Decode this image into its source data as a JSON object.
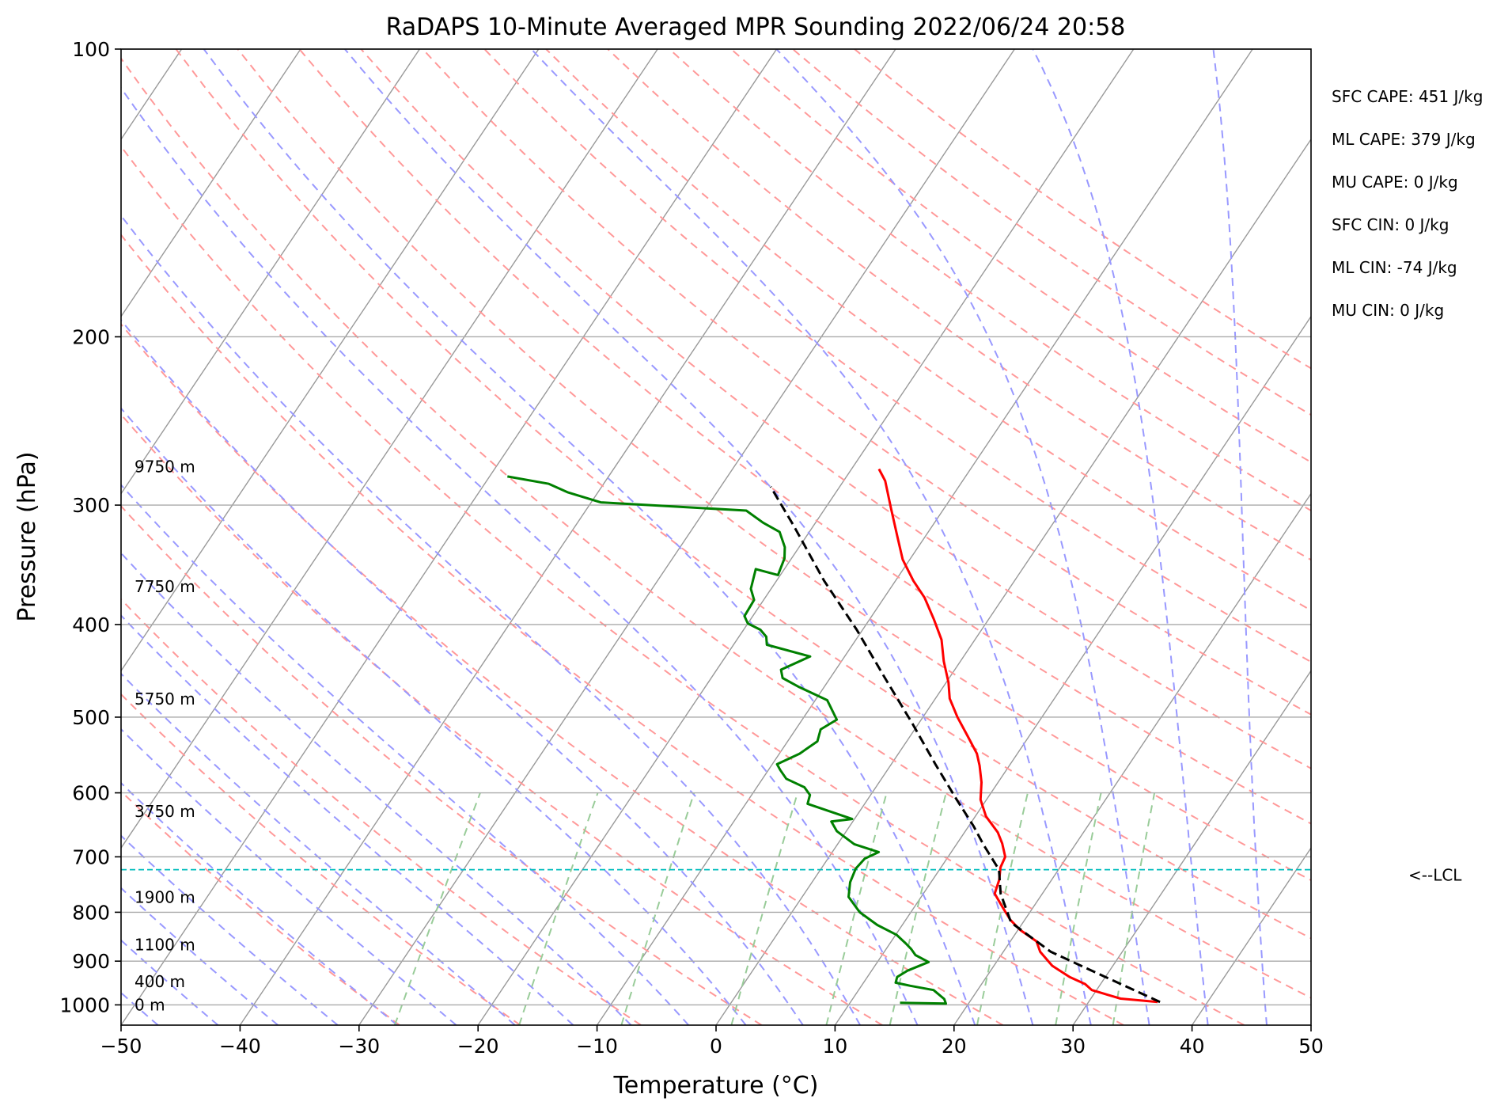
{
  "chart_data": {
    "type": "skew-t",
    "title": "RaDAPS 10-Minute Averaged MPR Sounding 2022/06/24 20:58",
    "xlabel": "Temperature (°C)",
    "ylabel": "Pressure (hPa)",
    "xlim": [
      -50,
      50
    ],
    "ylim": [
      1050,
      100
    ],
    "y_scale": "log",
    "x_ticks": [
      "−50",
      "−40",
      "−30",
      "−20",
      "−10",
      "0",
      "10",
      "20",
      "30",
      "40",
      "50"
    ],
    "y_ticks": [
      "100",
      "200",
      "300",
      "400",
      "500",
      "600",
      "700",
      "800",
      "900",
      "1000"
    ],
    "grid": true,
    "height_labels": [
      "9750 m",
      "7750 m",
      "5750 m",
      "3750 m",
      "1900 m",
      "1100 m",
      "400 m",
      "0 m"
    ],
    "stats": [
      "SFC CAPE: 451 J/kg",
      "ML CAPE: 379 J/kg",
      "MU CAPE: 0 J/kg",
      "SFC CIN: 0 J/kg",
      "ML CIN: -74 J/kg",
      "MU CIN: 0 J/kg"
    ],
    "lcl": {
      "label": "<--LCL",
      "pressure": 722
    },
    "series": [
      {
        "role": "temperature",
        "color": "#ff0000",
        "points": [
          [
            35.8,
            993
          ],
          [
            32.5,
            985
          ],
          [
            31.5,
            978
          ],
          [
            29.6,
            965
          ],
          [
            28.7,
            951
          ],
          [
            27.0,
            935
          ],
          [
            24.9,
            910
          ],
          [
            23.1,
            880
          ],
          [
            22.2,
            858
          ],
          [
            20.2,
            835
          ],
          [
            18.8,
            815
          ],
          [
            17.4,
            790
          ],
          [
            16.0,
            765
          ],
          [
            15.6,
            740
          ],
          [
            15.0,
            718
          ],
          [
            14.8,
            700
          ],
          [
            13.8,
            678
          ],
          [
            12.8,
            660
          ],
          [
            10.9,
            635
          ],
          [
            9.5,
            610
          ],
          [
            8.6,
            585
          ],
          [
            7.5,
            562
          ],
          [
            6.6,
            546
          ],
          [
            4.8,
            523
          ],
          [
            2.9,
            500
          ],
          [
            1.2,
            478
          ],
          [
            0.2,
            460
          ],
          [
            -1.4,
            437
          ],
          [
            -2.8,
            415
          ],
          [
            -4.6,
            395
          ],
          [
            -6.6,
            375
          ],
          [
            -8.5,
            360
          ],
          [
            -10.6,
            342
          ],
          [
            -12.3,
            324
          ],
          [
            -14.5,
            302
          ],
          [
            -16.5,
            283
          ],
          [
            -17.7,
            275
          ]
        ]
      },
      {
        "role": "dewpoint",
        "color": "#008000",
        "points": [
          [
            14.2,
            995
          ],
          [
            18.1,
            997
          ],
          [
            17.7,
            986
          ],
          [
            16.3,
            965
          ],
          [
            14.1,
            955
          ],
          [
            12.7,
            948
          ],
          [
            12.5,
            935
          ],
          [
            13.0,
            921
          ],
          [
            14.3,
            902
          ],
          [
            12.8,
            887
          ],
          [
            12.1,
            874
          ],
          [
            11.3,
            862
          ],
          [
            10.1,
            845
          ],
          [
            7.9,
            825
          ],
          [
            5.7,
            800
          ],
          [
            3.9,
            771
          ],
          [
            3.2,
            744
          ],
          [
            2.9,
            720
          ],
          [
            3.1,
            703
          ],
          [
            3.9,
            692
          ],
          [
            1.4,
            679
          ],
          [
            -0.8,
            658
          ],
          [
            -1.8,
            643
          ],
          [
            -0.2,
            639
          ],
          [
            -4.8,
            616
          ],
          [
            -5.1,
            603
          ],
          [
            -6.0,
            592
          ],
          [
            -8.0,
            580
          ],
          [
            -9.0,
            568
          ],
          [
            -9.6,
            560
          ],
          [
            -8.3,
            546
          ],
          [
            -7.5,
            530
          ],
          [
            -7.9,
            515
          ],
          [
            -7.1,
            503
          ],
          [
            -9.0,
            480
          ],
          [
            -12.1,
            465
          ],
          [
            -14.0,
            455
          ],
          [
            -14.6,
            446
          ],
          [
            -12.9,
            432
          ],
          [
            -17.2,
            420
          ],
          [
            -17.7,
            412
          ],
          [
            -18.6,
            405
          ],
          [
            -20.0,
            399
          ],
          [
            -20.7,
            392
          ],
          [
            -20.8,
            377
          ],
          [
            -21.7,
            367
          ],
          [
            -22.4,
            350
          ],
          [
            -20.2,
            355
          ],
          [
            -20.6,
            341
          ],
          [
            -21.2,
            332
          ],
          [
            -22.5,
            320
          ],
          [
            -24.4,
            313
          ],
          [
            -26.5,
            304
          ],
          [
            -39.2,
            298
          ],
          [
            -42.5,
            291
          ],
          [
            -44.6,
            285
          ],
          [
            -48.5,
            280
          ]
        ]
      },
      {
        "role": "parcel",
        "color": "#000000",
        "points": [
          [
            36.0,
            993
          ],
          [
            30.0,
            935
          ],
          [
            24.0,
            880
          ],
          [
            19.0,
            820
          ],
          [
            16.5,
            765
          ],
          [
            15.0,
            722
          ],
          [
            12.3,
            680
          ],
          [
            10.4,
            650
          ],
          [
            7.5,
            610
          ],
          [
            3.7,
            560
          ],
          [
            -0.5,
            508
          ],
          [
            -5.4,
            455
          ],
          [
            -10.5,
            405
          ],
          [
            -16.0,
            360
          ],
          [
            -21.7,
            315
          ],
          [
            -25.8,
            287
          ]
        ]
      }
    ],
    "background_lines": {
      "isotherms": {
        "color": "#999999"
      },
      "dry_adiabats": {
        "color": "#ff9999"
      },
      "moist_adiabats": {
        "color": "#9999ff"
      },
      "mixing_ratio": {
        "color": "#99cc99"
      }
    }
  }
}
